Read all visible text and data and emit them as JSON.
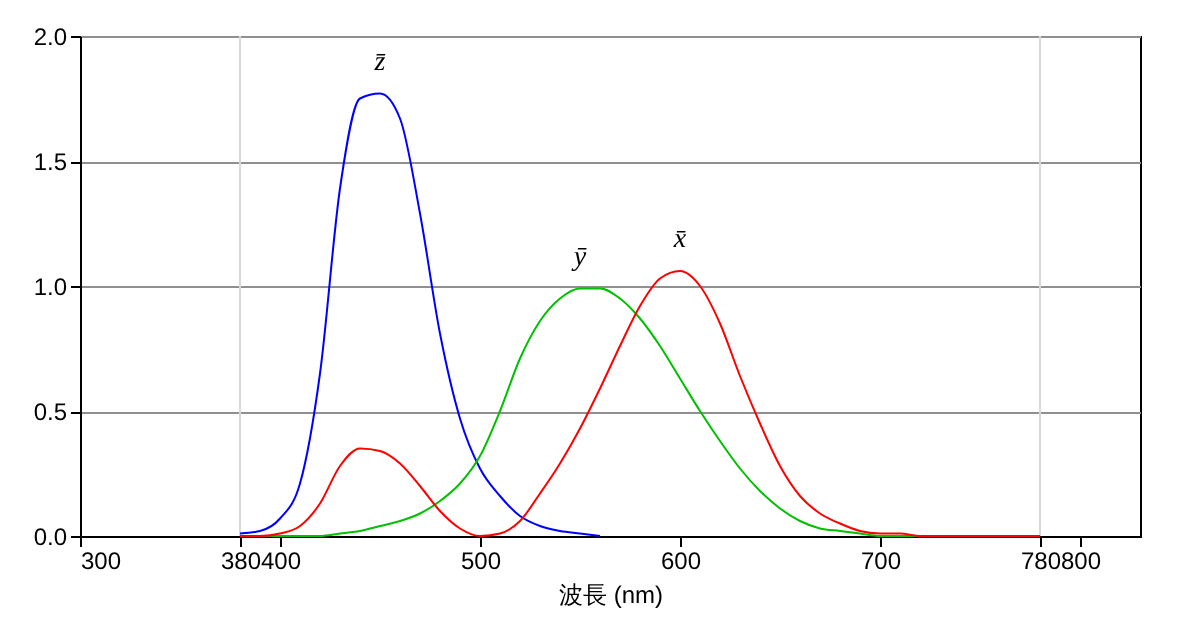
{
  "chart_data": {
    "type": "line",
    "xlabel": "波長 (nm)",
    "series": [
      {
        "name": "z̄",
        "color": "#0000ff",
        "x": [
          380,
          390,
          400,
          410,
          420,
          430,
          440,
          450,
          460,
          470,
          480,
          490,
          500,
          510,
          520,
          530,
          540,
          550,
          560
        ],
        "values": [
          0.01,
          0.02,
          0.07,
          0.21,
          0.65,
          1.39,
          1.75,
          1.77,
          1.67,
          1.29,
          0.81,
          0.47,
          0.27,
          0.16,
          0.08,
          0.04,
          0.02,
          0.01,
          0.0
        ]
      },
      {
        "name": "ȳ",
        "color": "#00c000",
        "x": [
          380,
          390,
          400,
          410,
          420,
          430,
          440,
          450,
          460,
          470,
          480,
          490,
          500,
          510,
          520,
          530,
          540,
          550,
          560,
          570,
          580,
          590,
          600,
          610,
          620,
          630,
          640,
          650,
          660,
          670,
          680,
          690,
          700,
          710,
          720
        ],
        "values": [
          0.0,
          0.0,
          0.0,
          0.0,
          0.0,
          0.01,
          0.02,
          0.04,
          0.06,
          0.09,
          0.14,
          0.21,
          0.32,
          0.5,
          0.71,
          0.86,
          0.95,
          0.99,
          0.99,
          0.95,
          0.87,
          0.76,
          0.63,
          0.5,
          0.38,
          0.27,
          0.18,
          0.11,
          0.06,
          0.03,
          0.02,
          0.01,
          0.0,
          0.0,
          0.0
        ]
      },
      {
        "name": "x̄",
        "color": "#ff0000",
        "x": [
          380,
          390,
          400,
          410,
          420,
          430,
          440,
          450,
          460,
          470,
          480,
          490,
          500,
          510,
          520,
          530,
          540,
          550,
          560,
          570,
          580,
          590,
          600,
          610,
          620,
          630,
          640,
          650,
          660,
          670,
          680,
          690,
          700,
          710,
          720,
          730,
          740,
          750,
          760,
          770,
          780
        ],
        "values": [
          0.0,
          0.0,
          0.01,
          0.04,
          0.13,
          0.28,
          0.35,
          0.34,
          0.29,
          0.2,
          0.1,
          0.03,
          0.0,
          0.01,
          0.06,
          0.17,
          0.29,
          0.43,
          0.59,
          0.76,
          0.92,
          1.03,
          1.06,
          1.0,
          0.85,
          0.64,
          0.45,
          0.28,
          0.16,
          0.09,
          0.05,
          0.02,
          0.01,
          0.01,
          0.0,
          0.0,
          0.0,
          0.0,
          0.0,
          0.0,
          0.0
        ]
      }
    ],
    "xlim": [
      300,
      830
    ],
    "xticks": [
      300,
      380,
      400,
      500,
      600,
      700,
      780,
      800
    ],
    "ylim": [
      0,
      2.0
    ],
    "yticks": [
      {
        "value": 0,
        "label": "0.0"
      },
      {
        "value": 0.5,
        "label": "0.5"
      },
      {
        "value": 1.0,
        "label": "1.0"
      },
      {
        "value": 1.5,
        "label": "1.5"
      },
      {
        "value": 2.0,
        "label": "2.0"
      }
    ],
    "ref_lines": [
      {
        "axis": "x",
        "value": 380,
        "color": "#d8d8d8"
      },
      {
        "axis": "x",
        "value": 780,
        "color": "#d8d8d8"
      }
    ],
    "grid": "y",
    "legend": false,
    "marker": "none",
    "line_style": "solid"
  }
}
